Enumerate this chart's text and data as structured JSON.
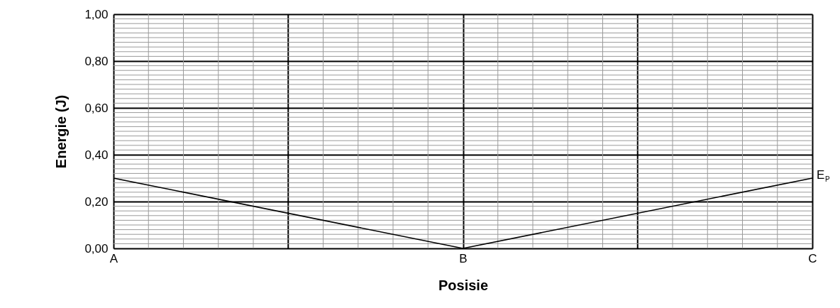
{
  "chart_data": {
    "type": "line",
    "xlabel": "Posisie",
    "ylabel": "Energie (J)",
    "categories": [
      "A",
      "B",
      "C"
    ],
    "series": [
      {
        "name": "E$_{P}$",
        "color": "#000000",
        "values": [
          0.3,
          0.0,
          0.3
        ]
      }
    ],
    "ylim": [
      0,
      1
    ],
    "yticks": [
      {
        "value": 0,
        "label": "0,00"
      },
      {
        "value": 0.2,
        "label": "0,20"
      },
      {
        "value": 0.4,
        "label": "0,40"
      },
      {
        "value": 0.6,
        "label": "0,60"
      },
      {
        "value": 0.8,
        "label": "0,80"
      },
      {
        "value": 1,
        "label": "1,00"
      }
    ],
    "grid": true,
    "marker": "none",
    "line_style": "solid"
  }
}
